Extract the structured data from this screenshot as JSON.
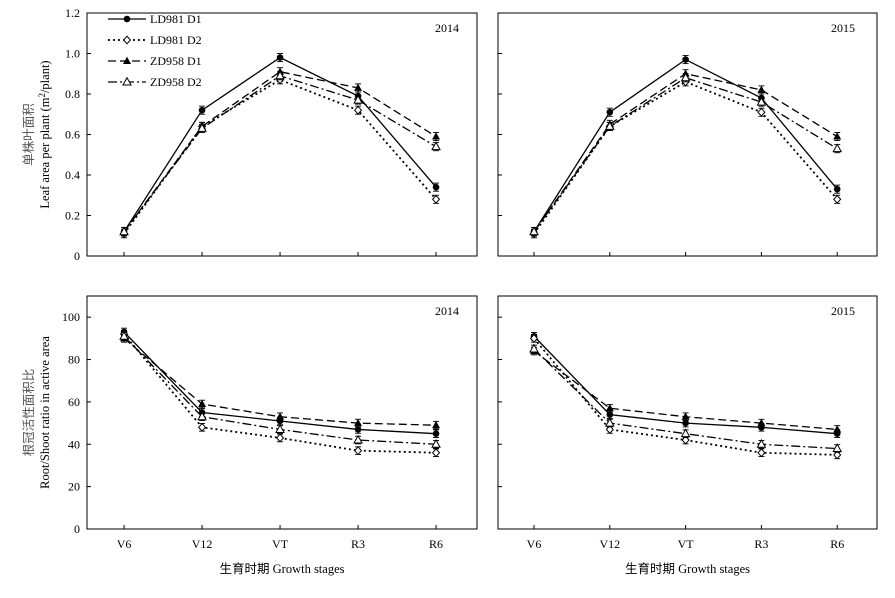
{
  "chart_data": [
    {
      "type": "line",
      "panel": "top-left",
      "year_label": "2014",
      "ylabel_cn": "单株叶面积",
      "ylabel_en": "Leaf area per plant (m",
      "ylabel_en_sup": "2",
      "ylabel_en_tail": "/plant)",
      "xlabel": "",
      "categories": [
        "V6",
        "V12",
        "VT",
        "R3",
        "R6"
      ],
      "ylim": [
        0,
        1.2
      ],
      "yticks": [
        "0",
        "0.2",
        "0.4",
        "0.6",
        "0.8",
        "1.0",
        "1.2"
      ],
      "show_x_tick_labels": false,
      "series": [
        {
          "name": "LD981 D1",
          "values": [
            0.12,
            0.72,
            0.98,
            0.79,
            0.34
          ]
        },
        {
          "name": "LD981 D2",
          "values": [
            0.11,
            0.64,
            0.87,
            0.72,
            0.28
          ]
        },
        {
          "name": "ZD958 D1",
          "values": [
            0.12,
            0.64,
            0.91,
            0.83,
            0.59
          ]
        },
        {
          "name": "ZD958 D2",
          "values": [
            0.12,
            0.63,
            0.89,
            0.77,
            0.54
          ]
        }
      ]
    },
    {
      "type": "line",
      "panel": "top-right",
      "year_label": "2015",
      "xlabel": "",
      "categories": [
        "V6",
        "V12",
        "VT",
        "R3",
        "R6"
      ],
      "ylim": [
        0,
        1.2
      ],
      "show_x_tick_labels": false,
      "series": [
        {
          "name": "LD981 D1",
          "values": [
            0.12,
            0.71,
            0.97,
            0.78,
            0.33
          ]
        },
        {
          "name": "LD981 D2",
          "values": [
            0.11,
            0.64,
            0.86,
            0.71,
            0.28
          ]
        },
        {
          "name": "ZD958 D1",
          "values": [
            0.12,
            0.65,
            0.9,
            0.82,
            0.59
          ]
        },
        {
          "name": "ZD958 D2",
          "values": [
            0.12,
            0.64,
            0.88,
            0.76,
            0.53
          ]
        }
      ]
    },
    {
      "type": "line",
      "panel": "bottom-left",
      "year_label": "2014",
      "ylabel_cn": "根冠活性面积比",
      "ylabel_en": "Root/Shoot ratio in active area",
      "xlabel": "生育时期 Growth stages",
      "categories": [
        "V6",
        "V12",
        "VT",
        "R3",
        "R6"
      ],
      "ylim": [
        0,
        110
      ],
      "yticks": [
        "0",
        "20",
        "40",
        "60",
        "80",
        "100"
      ],
      "show_x_tick_labels": true,
      "series": [
        {
          "name": "LD981 D1",
          "values": [
            93,
            55,
            51,
            47,
            45
          ]
        },
        {
          "name": "LD981 D2",
          "values": [
            92,
            48,
            43,
            37,
            36
          ]
        },
        {
          "name": "ZD958 D1",
          "values": [
            90,
            59,
            53,
            50,
            49
          ]
        },
        {
          "name": "ZD958 D2",
          "values": [
            91,
            53,
            47,
            42,
            40
          ]
        }
      ]
    },
    {
      "type": "line",
      "panel": "bottom-right",
      "year_label": "2015",
      "xlabel": "生育时期 Growth stages",
      "categories": [
        "V6",
        "V12",
        "VT",
        "R3",
        "R6"
      ],
      "ylim": [
        0,
        110
      ],
      "show_x_tick_labels": true,
      "series": [
        {
          "name": "LD981 D1",
          "values": [
            91,
            54,
            50,
            48,
            45
          ]
        },
        {
          "name": "LD981 D2",
          "values": [
            90,
            47,
            42,
            36,
            35
          ]
        },
        {
          "name": "ZD958 D1",
          "values": [
            84,
            57,
            53,
            50,
            47
          ]
        },
        {
          "name": "ZD958 D2",
          "values": [
            85,
            50,
            45,
            40,
            38
          ]
        }
      ]
    }
  ],
  "legend": {
    "placement": "top-left of top-left panel",
    "entries": [
      "LD981 D1",
      "LD981 D2",
      "ZD958 D1",
      "ZD958 D2"
    ]
  }
}
